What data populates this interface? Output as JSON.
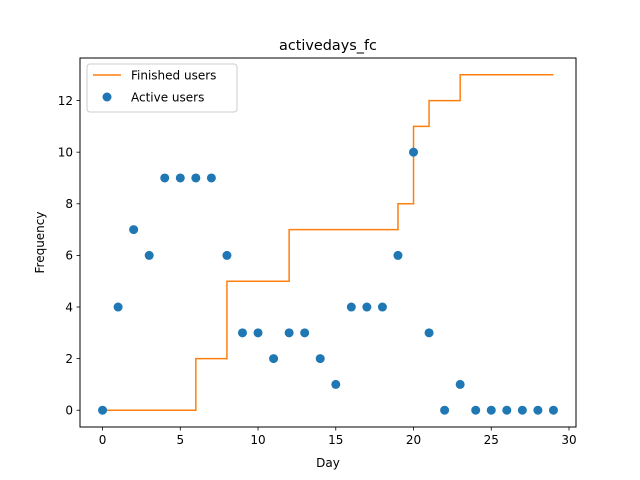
{
  "chart_data": {
    "type": "scatter",
    "title": "activedays_fc",
    "xlabel": "Day",
    "ylabel": "Frequency",
    "xlim": [
      -1.45,
      30.45
    ],
    "ylim": [
      -0.65,
      13.65
    ],
    "xticks": [
      0,
      5,
      10,
      15,
      20,
      25,
      30
    ],
    "yticks": [
      0,
      2,
      4,
      6,
      8,
      10,
      12
    ],
    "legend": {
      "placement": "upper-left"
    },
    "grid": false,
    "series": [
      {
        "name": "Finished users",
        "kind": "step-post",
        "color": "#ff7f0e",
        "x": [
          0,
          6,
          8,
          12,
          19,
          20,
          21,
          23,
          29
        ],
        "y": [
          0,
          2,
          5,
          7,
          8,
          11,
          12,
          13,
          13
        ]
      },
      {
        "name": "Active users",
        "kind": "scatter",
        "color": "#1f77b4",
        "x": [
          0,
          1,
          2,
          3,
          4,
          5,
          6,
          7,
          8,
          9,
          10,
          11,
          12,
          13,
          14,
          15,
          16,
          17,
          18,
          19,
          20,
          21,
          22,
          23,
          24,
          25,
          26,
          27,
          28,
          29
        ],
        "y": [
          0,
          4,
          7,
          6,
          9,
          9,
          9,
          9,
          6,
          3,
          3,
          2,
          3,
          3,
          2,
          1,
          4,
          4,
          4,
          6,
          10,
          3,
          0,
          1,
          0,
          0,
          0,
          0,
          0,
          0
        ]
      }
    ]
  }
}
